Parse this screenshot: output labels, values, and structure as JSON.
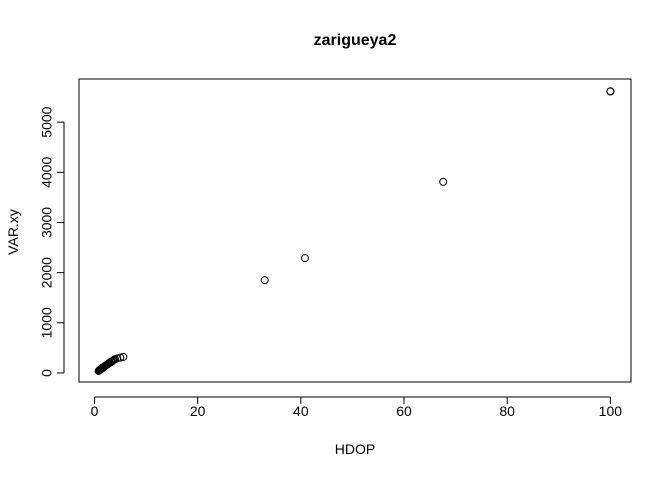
{
  "chart_data": {
    "type": "scatter",
    "title": "zarigueya2",
    "xlabel": "HDOP",
    "ylabel": "VAR.xy",
    "xlim": [
      -3,
      104
    ],
    "ylim": [
      -180,
      5860
    ],
    "xticks": [
      0,
      20,
      40,
      60,
      80,
      100
    ],
    "yticks": [
      0,
      1000,
      2000,
      3000,
      4000,
      5000
    ],
    "xtick_labels": [
      "0",
      "20",
      "40",
      "60",
      "80",
      100
    ],
    "ytick_labels": [
      "0",
      "1000",
      "2000",
      "3000",
      "4000",
      "5000"
    ],
    "grid": false,
    "points": [
      {
        "x": 0.8,
        "y": 40
      },
      {
        "x": 0.9,
        "y": 48
      },
      {
        "x": 1.0,
        "y": 56
      },
      {
        "x": 1.1,
        "y": 64
      },
      {
        "x": 1.2,
        "y": 72
      },
      {
        "x": 1.3,
        "y": 80
      },
      {
        "x": 1.4,
        "y": 88
      },
      {
        "x": 1.5,
        "y": 96
      },
      {
        "x": 1.6,
        "y": 104
      },
      {
        "x": 1.7,
        "y": 112
      },
      {
        "x": 1.8,
        "y": 120
      },
      {
        "x": 1.9,
        "y": 128
      },
      {
        "x": 2.0,
        "y": 136
      },
      {
        "x": 2.2,
        "y": 150
      },
      {
        "x": 2.4,
        "y": 164
      },
      {
        "x": 2.6,
        "y": 178
      },
      {
        "x": 2.8,
        "y": 192
      },
      {
        "x": 3.0,
        "y": 206
      },
      {
        "x": 3.2,
        "y": 220
      },
      {
        "x": 3.4,
        "y": 234
      },
      {
        "x": 3.6,
        "y": 248
      },
      {
        "x": 3.8,
        "y": 262
      },
      {
        "x": 4.0,
        "y": 276
      },
      {
        "x": 4.4,
        "y": 292
      },
      {
        "x": 5.0,
        "y": 306
      },
      {
        "x": 5.6,
        "y": 320
      },
      {
        "x": 33.0,
        "y": 1850
      },
      {
        "x": 40.8,
        "y": 2290
      },
      {
        "x": 67.6,
        "y": 3810
      },
      {
        "x": 100.0,
        "y": 5610
      },
      {
        "x": 100.0,
        "y": 5615
      }
    ]
  }
}
